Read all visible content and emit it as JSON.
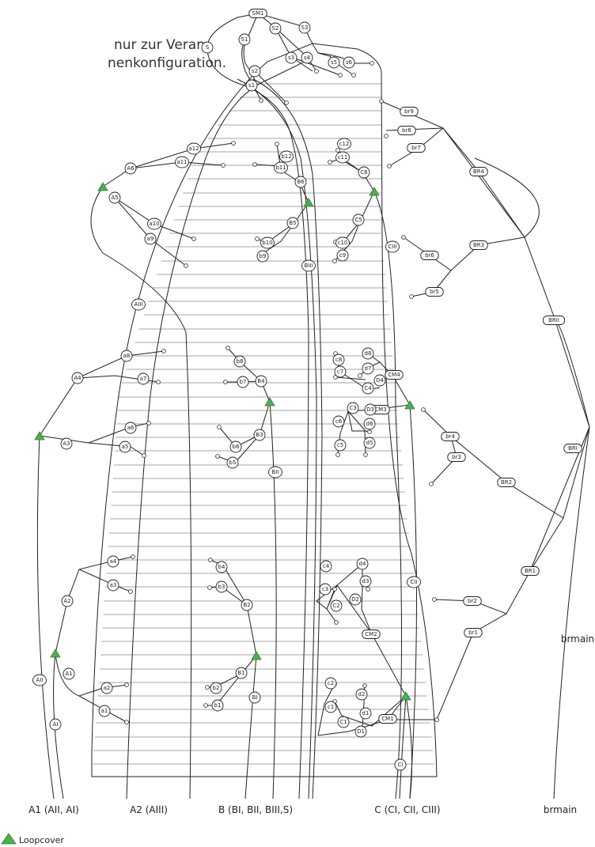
{
  "intro_text": {
    "line1": "nur zur Veran-",
    "line2": "nenkonfiguration."
  },
  "colors": {
    "loopcover": "#4caf50",
    "line": "#222222"
  },
  "nodes": {
    "SM1": "SM1",
    "S": "S",
    "S1": "S1",
    "S2": "S2",
    "S3": "S3",
    "s1": "s1",
    "s2": "s2",
    "s3": "s3",
    "s4": "s4",
    "s5": "s5",
    "s6": "s6",
    "br9": "br9",
    "br8": "br8",
    "br7": "br7",
    "br6": "br6",
    "br5": "br5",
    "br4": "br4",
    "br3": "br3",
    "br2": "br2",
    "br1": "br1",
    "BR4": "BR4",
    "BR3": "BR3",
    "BR2": "BR2",
    "BR1": "BR1",
    "BRII": "BRII",
    "BRI": "BRI",
    "a12": "a12",
    "a11": "a11",
    "a10": "a10",
    "a9": "a9",
    "a8": "a8",
    "a7": "a7",
    "a6": "a6",
    "a5": "a5",
    "a4": "a4",
    "a3": "a3",
    "a2": "a2",
    "a1": "a1",
    "A6": "A6",
    "A5": "A5",
    "A4": "A4",
    "A3": "A3",
    "A2": "A2",
    "A1": "A1",
    "AIII": "AIII",
    "AII": "AII",
    "AI": "AI",
    "b12": "b12",
    "b11": "b11",
    "b10": "b10",
    "b9": "b9",
    "b8": "b8",
    "b7": "b7",
    "b6": "b6",
    "b5": "b5",
    "b4": "b4",
    "b3": "b3",
    "b2": "b2",
    "b1": "b1",
    "B6": "B6",
    "B5": "B5",
    "B4": "B4",
    "B3": "B3",
    "B2": "B2",
    "B1": "B1",
    "BIII": "BIII",
    "BII": "BII",
    "BI": "BI",
    "c12": "c12",
    "c11": "c11",
    "c10": "c10",
    "c9": "c9",
    "c8": "c8",
    "c7": "c7",
    "c6": "c6",
    "c5": "c5",
    "c4": "c4",
    "c3": "c3",
    "c2": "c2",
    "c1": "c1",
    "C6": "C6",
    "C5": "C5",
    "C4": "C4",
    "C3": "C3",
    "C2": "C2",
    "C1": "C1",
    "CIII": "CIII",
    "CII": "CII",
    "CI": "CI",
    "CM4": "CM4",
    "CM3": "CM3",
    "CM2": "CM2",
    "CM1": "CM1",
    "d8": "d8",
    "d7": "d7",
    "d6": "d6",
    "d5": "d5",
    "d4": "d4",
    "d3": "d3",
    "d2": "d2",
    "d1": "d1",
    "D4": "D4",
    "D3": "D3",
    "D2": "D2",
    "D1": "D1"
  },
  "side_label": "brmain",
  "bottom_labels": {
    "a1": "A1 (AII, AI)",
    "a2": "A2 (AIII)",
    "b": "B (BI, BII, BIII,S)",
    "c": "C (CI, CII, CIII)",
    "brmain": "brmain"
  },
  "legend": {
    "loopcover": "Loopcover"
  }
}
